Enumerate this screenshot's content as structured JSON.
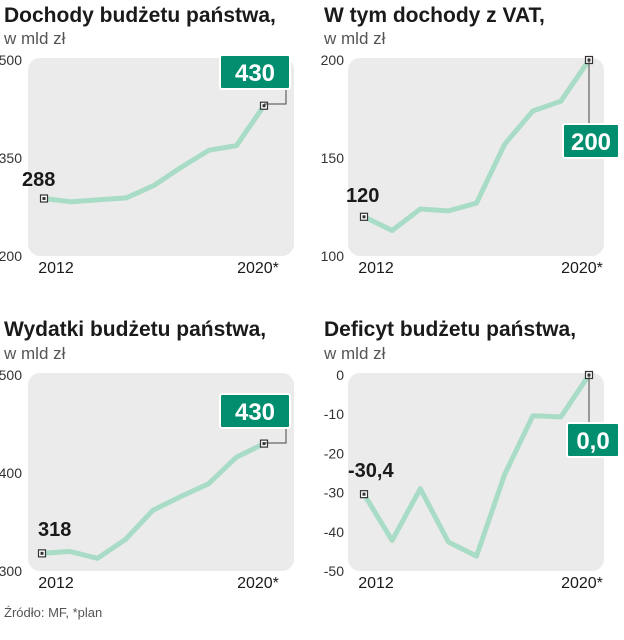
{
  "source": "Źródło: MF, *plan",
  "chart_data": [
    {
      "type": "line",
      "title": "Dochody budżetu państwa,",
      "subtitle": "w mld zł",
      "x": [
        "2012",
        "2013",
        "2014",
        "2015",
        "2016",
        "2017",
        "2018",
        "2019",
        "2020*"
      ],
      "values": [
        288,
        283,
        286,
        289,
        308,
        336,
        362,
        369,
        430
      ],
      "ylim": [
        200,
        500
      ],
      "y_ticks": [
        "200",
        "350",
        "500"
      ],
      "x_tick_labels": [
        "2012",
        "2020*"
      ],
      "start_label": "288",
      "end_label": "430",
      "line_color": "#a9dcc6",
      "badge_color": "#008e6e",
      "bg_color": "#ebebeb"
    },
    {
      "type": "line",
      "title": "W tym dochody z VAT,",
      "subtitle": "w mld zł",
      "x": [
        "2012",
        "2013",
        "2014",
        "2015",
        "2016",
        "2017",
        "2018",
        "2019",
        "2020*"
      ],
      "values": [
        120,
        113,
        124,
        123,
        127,
        157,
        174,
        179,
        200
      ],
      "ylim": [
        100,
        200
      ],
      "y_ticks": [
        "100",
        "150",
        "200"
      ],
      "x_tick_labels": [
        "2012",
        "2020*"
      ],
      "start_label": "120",
      "end_label": "200",
      "line_color": "#a9dcc6",
      "badge_color": "#008e6e",
      "bg_color": "#ebebeb"
    },
    {
      "type": "line",
      "title": "Wydatki budżetu państwa,",
      "subtitle": "w mld zł",
      "x": [
        "2012",
        "2013",
        "2014",
        "2015",
        "2016",
        "2017",
        "2018",
        "2019",
        "2020*"
      ],
      "values": [
        318,
        320,
        313,
        332,
        362,
        376,
        389,
        416,
        430
      ],
      "ylim": [
        300,
        500
      ],
      "y_ticks": [
        "300",
        "400",
        "500"
      ],
      "x_tick_labels": [
        "2012",
        "2020*"
      ],
      "start_label": "318",
      "end_label": "430",
      "line_color": "#a9dcc6",
      "badge_color": "#008e6e",
      "bg_color": "#ebebeb"
    },
    {
      "type": "line",
      "title": "Deficyt budżetu państwa,",
      "subtitle": "w mld zł",
      "x": [
        "2012",
        "2013",
        "2014",
        "2015",
        "2016",
        "2017",
        "2018",
        "2019",
        "2020*"
      ],
      "values": [
        -30.4,
        -42.2,
        -29,
        -42.6,
        -46.2,
        -25.4,
        -10.4,
        -10.7,
        0.0
      ],
      "ylim": [
        -50,
        0
      ],
      "y_ticks": [
        "-50",
        "-40",
        "-30",
        "-20",
        "-10",
        "0"
      ],
      "x_tick_labels": [
        "2012",
        "2020*"
      ],
      "start_label": "-30,4",
      "end_label": "0,0",
      "line_color": "#a9dcc6",
      "badge_color": "#008e6e",
      "bg_color": "#ebebeb"
    }
  ]
}
